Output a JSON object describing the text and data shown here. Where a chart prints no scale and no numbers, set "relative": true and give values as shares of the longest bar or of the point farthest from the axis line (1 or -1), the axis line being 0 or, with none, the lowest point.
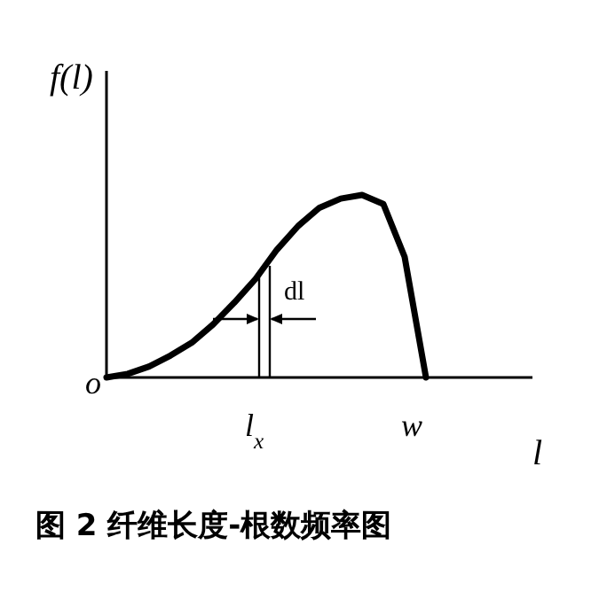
{
  "chart_data": {
    "type": "line",
    "relative": true,
    "ylabel": "f(l)",
    "xlabel": "l",
    "categories": [
      null,
      null,
      null,
      null,
      null,
      null,
      null,
      null,
      null,
      null,
      null,
      null,
      null,
      null,
      null,
      null
    ],
    "series": [
      {
        "color": "#000000",
        "values": [
          0,
          0.02,
          0.06,
          0.12,
          0.19,
          0.29,
          0.41,
          0.54,
          0.7,
          0.83,
          0.93,
          0.98,
          1,
          0.95,
          0.66,
          0
        ]
      }
    ],
    "annotations": [
      "o",
      "l$_{x}$",
      "w",
      "dl",
      "图 2  纤维长度-根数频率图"
    ]
  }
}
